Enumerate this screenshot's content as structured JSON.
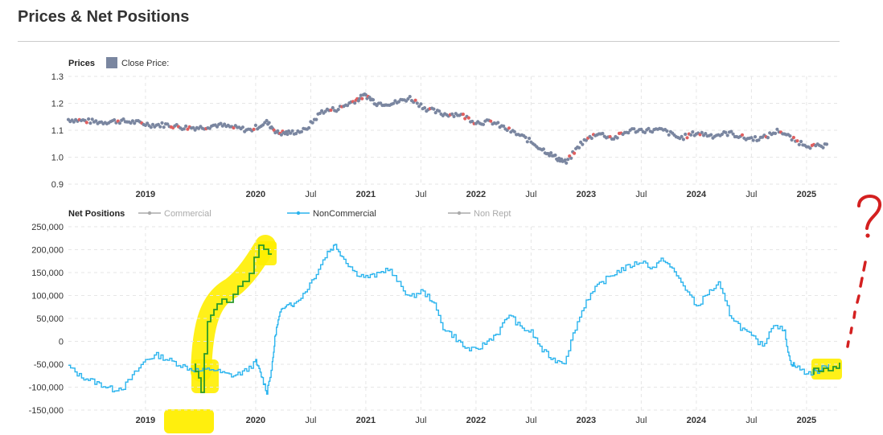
{
  "page": {
    "title": "Prices & Net Positions"
  },
  "colors": {
    "price_point": "#7a86a0",
    "price_highlight": "#e06060",
    "noncommercial": "#2ab4ee",
    "commercial": "#aaaaaa",
    "nonrept": "#aaaaaa",
    "highlighter": "#ffee00",
    "overlay_green": "#2a9a2a",
    "annotation_red": "#d42020"
  },
  "chart_data": [
    {
      "type": "scatter",
      "title": "Prices",
      "legend": [
        {
          "label": "Close Price:",
          "marker": "square"
        }
      ],
      "legend_position": "top-left",
      "grid": true,
      "ylim": [
        0.9,
        1.3
      ],
      "yticks": [
        "1.3",
        "1.2",
        "1.1",
        "1.0",
        "0.9"
      ],
      "xlim": [
        2018.3,
        2025.3
      ],
      "xticks": [
        {
          "label": "2019",
          "x": 2019.0,
          "bold": true
        },
        {
          "label": "2020",
          "x": 2020.0,
          "bold": true
        },
        {
          "label": "Jul",
          "x": 2020.5,
          "bold": false
        },
        {
          "label": "2021",
          "x": 2021.0,
          "bold": true
        },
        {
          "label": "Jul",
          "x": 2021.5,
          "bold": false
        },
        {
          "label": "2022",
          "x": 2022.0,
          "bold": true
        },
        {
          "label": "Jul",
          "x": 2022.5,
          "bold": false
        },
        {
          "label": "2023",
          "x": 2023.0,
          "bold": true
        },
        {
          "label": "Jul",
          "x": 2023.5,
          "bold": false
        },
        {
          "label": "2024",
          "x": 2024.0,
          "bold": true
        },
        {
          "label": "Jul",
          "x": 2024.5,
          "bold": false
        },
        {
          "label": "2025",
          "x": 2025.0,
          "bold": true
        }
      ],
      "series": [
        {
          "name": "Close Price:",
          "x": [
            2018.3,
            2018.45,
            2018.6,
            2018.75,
            2018.9,
            2019.05,
            2019.2,
            2019.35,
            2019.5,
            2019.65,
            2019.8,
            2019.95,
            2020.1,
            2020.2,
            2020.3,
            2020.45,
            2020.6,
            2020.75,
            2020.9,
            2021.0,
            2021.1,
            2021.25,
            2021.4,
            2021.55,
            2021.7,
            2021.85,
            2022.0,
            2022.15,
            2022.3,
            2022.45,
            2022.6,
            2022.72,
            2022.82,
            2022.95,
            2023.1,
            2023.25,
            2023.4,
            2023.55,
            2023.7,
            2023.85,
            2024.0,
            2024.15,
            2024.3,
            2024.45,
            2024.6,
            2024.75,
            2024.9,
            2025.05,
            2025.2
          ],
          "values": [
            1.14,
            1.135,
            1.13,
            1.135,
            1.13,
            1.12,
            1.12,
            1.11,
            1.11,
            1.12,
            1.11,
            1.1,
            1.13,
            1.09,
            1.09,
            1.1,
            1.17,
            1.18,
            1.21,
            1.23,
            1.2,
            1.2,
            1.22,
            1.18,
            1.16,
            1.16,
            1.13,
            1.13,
            1.1,
            1.07,
            1.03,
            1.0,
            0.98,
            1.05,
            1.09,
            1.07,
            1.1,
            1.1,
            1.1,
            1.07,
            1.09,
            1.08,
            1.09,
            1.07,
            1.07,
            1.1,
            1.06,
            1.04,
            1.04
          ]
        }
      ]
    },
    {
      "type": "line",
      "title": "Net Positions",
      "legend": [
        {
          "label": "Commercial",
          "active": false
        },
        {
          "label": "NonCommercial",
          "active": true
        },
        {
          "label": "Non Rept",
          "active": false
        }
      ],
      "legend_position": "top",
      "grid": true,
      "ylim": [
        -150000,
        250000
      ],
      "yticks": [
        "250,000",
        "200,000",
        "150,000",
        "100,000",
        "50,000",
        "0",
        "-50,000",
        "-100,000",
        "-150,000"
      ],
      "xlim": [
        2018.3,
        2025.3
      ],
      "xticks": [
        {
          "label": "2019",
          "x": 2019.0,
          "bold": true
        },
        {
          "label": "2020",
          "x": 2020.0,
          "bold": true
        },
        {
          "label": "Jul",
          "x": 2020.5,
          "bold": false
        },
        {
          "label": "2021",
          "x": 2021.0,
          "bold": true
        },
        {
          "label": "Jul",
          "x": 2021.5,
          "bold": false
        },
        {
          "label": "2022",
          "x": 2022.0,
          "bold": true
        },
        {
          "label": "Jul",
          "x": 2022.5,
          "bold": false
        },
        {
          "label": "2023",
          "x": 2023.0,
          "bold": true
        },
        {
          "label": "Jul",
          "x": 2023.5,
          "bold": false
        },
        {
          "label": "2024",
          "x": 2024.0,
          "bold": true
        },
        {
          "label": "Jul",
          "x": 2024.5,
          "bold": false
        },
        {
          "label": "2025",
          "x": 2025.0,
          "bold": true
        }
      ],
      "series": [
        {
          "name": "NonCommercial",
          "x": [
            2018.3,
            2018.4,
            2018.5,
            2018.6,
            2018.7,
            2018.8,
            2018.9,
            2019.0,
            2019.1,
            2019.2,
            2019.3,
            2019.4,
            2019.5,
            2019.6,
            2019.7,
            2019.8,
            2019.9,
            2020.0,
            2020.05,
            2020.1,
            2020.15,
            2020.18,
            2020.22,
            2020.28,
            2020.35,
            2020.45,
            2020.55,
            2020.65,
            2020.72,
            2020.8,
            2020.9,
            2021.0,
            2021.1,
            2021.2,
            2021.3,
            2021.4,
            2021.5,
            2021.6,
            2021.7,
            2021.8,
            2021.9,
            2022.0,
            2022.1,
            2022.2,
            2022.3,
            2022.4,
            2022.5,
            2022.6,
            2022.7,
            2022.8,
            2022.9,
            2023.0,
            2023.1,
            2023.2,
            2023.3,
            2023.4,
            2023.5,
            2023.6,
            2023.7,
            2023.8,
            2023.9,
            2024.0,
            2024.1,
            2024.2,
            2024.3,
            2024.4,
            2024.5,
            2024.6,
            2024.7,
            2024.8,
            2024.85,
            2024.9,
            2025.0,
            2025.1,
            2025.2
          ],
          "values": [
            -55000,
            -75000,
            -85000,
            -95000,
            -105000,
            -100000,
            -70000,
            -40000,
            -30000,
            -40000,
            -50000,
            -60000,
            -65000,
            -60000,
            -70000,
            -75000,
            -65000,
            -45000,
            -75000,
            -110000,
            -50000,
            20000,
            60000,
            85000,
            80000,
            110000,
            150000,
            195000,
            210000,
            180000,
            150000,
            140000,
            145000,
            160000,
            125000,
            95000,
            110000,
            90000,
            30000,
            10000,
            -15000,
            -20000,
            0,
            20000,
            60000,
            30000,
            20000,
            -20000,
            -40000,
            -45000,
            30000,
            90000,
            120000,
            140000,
            155000,
            165000,
            175000,
            160000,
            180000,
            150000,
            115000,
            75000,
            105000,
            125000,
            60000,
            30000,
            10000,
            -10000,
            40000,
            20000,
            -45000,
            -55000,
            -70000,
            -65000,
            -50000
          ]
        }
      ]
    }
  ]
}
